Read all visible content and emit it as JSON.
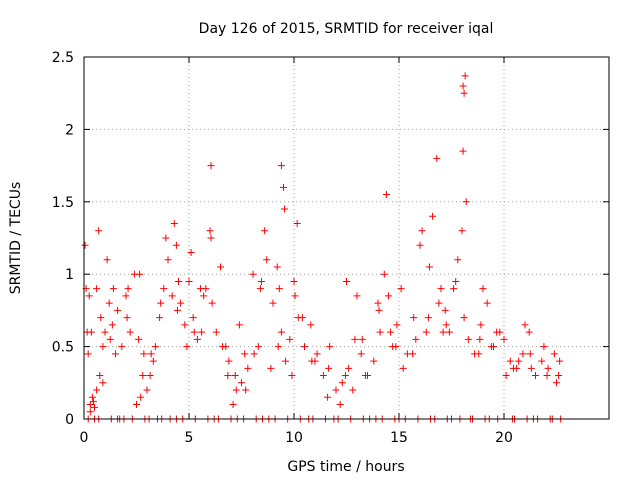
{
  "chart_data": {
    "type": "scatter",
    "title": "Day 126 of 2015, SRMTID for receiver iqal",
    "xlabel": "GPS time / hours",
    "ylabel": "SRMTID / TECUs",
    "xlim": [
      0,
      25
    ],
    "ylim": [
      0,
      2.5
    ],
    "xticks": [
      0,
      5,
      10,
      15,
      20
    ],
    "xtick_labels": [
      "0",
      "5",
      "10",
      "15",
      "20"
    ],
    "yticks": [
      0,
      0.5,
      1,
      1.5,
      2,
      2.5
    ],
    "ytick_labels": [
      "0",
      "0.5",
      "1",
      "1.5",
      "2",
      "2.5"
    ],
    "grid": true,
    "marker": "+",
    "series": [
      {
        "name": "SRMTID",
        "color": "#ff0000",
        "x": [
          0.05,
          0.1,
          0.15,
          0.2,
          0.3,
          0.4,
          0.5,
          0.6,
          0.7,
          0.8,
          0.9,
          1.0,
          1.2,
          1.4,
          1.6,
          1.8,
          2.0,
          2.2,
          2.4,
          2.6,
          2.8,
          3.0,
          3.2,
          3.4,
          3.6,
          3.8,
          4.0,
          4.2,
          4.4,
          4.6,
          4.8,
          5.0,
          5.2,
          5.4,
          5.6,
          5.8,
          6.0,
          6.1,
          6.3,
          6.6,
          6.9,
          7.2,
          7.5,
          7.8,
          8.1,
          8.4,
          8.7,
          9.0,
          9.2,
          9.4,
          9.6,
          9.8,
          10.0,
          10.2,
          10.5,
          10.8,
          11.1,
          11.4,
          11.7,
          12.0,
          12.3,
          12.6,
          12.9,
          13.2,
          13.5,
          13.8,
          14.1,
          14.3,
          14.5,
          14.7,
          14.9,
          15.1,
          15.4,
          15.7,
          16.0,
          16.3,
          16.6,
          16.9,
          17.0,
          17.2,
          17.4,
          17.6,
          17.8,
          18.0,
          18.1,
          18.3,
          18.6,
          18.9,
          19.2,
          19.5,
          19.8,
          20.0,
          20.3,
          20.6,
          20.9,
          21.2,
          21.5,
          21.8,
          22.1,
          22.4,
          22.6,
          0.3,
          0.6,
          1.1,
          1.5,
          2.1,
          2.7,
          3.3,
          4.5,
          5.7,
          6.5,
          7.1,
          7.7,
          8.3,
          8.9,
          9.3,
          9.9,
          10.4,
          11.0,
          11.6,
          12.2,
          12.8,
          13.4,
          14.0,
          14.6,
          15.2,
          15.8,
          16.4,
          17.1,
          17.7,
          18.2,
          18.8,
          19.4,
          20.1,
          20.7,
          21.3,
          21.9,
          22.5,
          4.3,
          9.4,
          9.5,
          14.4,
          16.8,
          18.05,
          18.1,
          18.15,
          6.05,
          10.15,
          3.9,
          5.1,
          8.6,
          12.5,
          13.0,
          16.1,
          19.0,
          21.0,
          0.9,
          2.5,
          4.9,
          7.4,
          0.5,
          1.3,
          1.9,
          2.3,
          2.9,
          3.5,
          4.1,
          4.7,
          5.3,
          5.9,
          6.4,
          7.0,
          7.6,
          8.2,
          8.8,
          9.7,
          10.3,
          10.9,
          11.5,
          12.1,
          12.7,
          13.3,
          13.9,
          14.2,
          14.8,
          15.3,
          15.9,
          16.5,
          17.3,
          17.9,
          18.4,
          19.1,
          19.7,
          20.4,
          21.1,
          21.6,
          22.2,
          22.7,
          1.7,
          3.1,
          4.4,
          6.2,
          7.3,
          8.5,
          9.1,
          10.7,
          11.9,
          13.6,
          15.0,
          16.7,
          17.5,
          18.5,
          19.3,
          20.5,
          21.4,
          22.3,
          0.2,
          0.7,
          1.6,
          3.7,
          0.35,
          1.25,
          2.05,
          2.85,
          3.65,
          4.45,
          5.25,
          6.05,
          6.85,
          7.65,
          8.45,
          9.25,
          10.05,
          10.85,
          11.65,
          12.45,
          13.25,
          14.05,
          14.85,
          15.65,
          16.45,
          17.25,
          18.05,
          18.85,
          19.65,
          20.45,
          21.25,
          22.05,
          22.65,
          0.25,
          0.45,
          0.75,
          1.35,
          2.65,
          3.15,
          5.55,
          6.75,
          7.25,
          8.05,
          9.55
        ],
        "y": [
          1.2,
          0.9,
          0.6,
          0.45,
          0.1,
          0.15,
          0.08,
          0.2,
          1.3,
          0.7,
          0.5,
          0.6,
          0.8,
          0.9,
          0.75,
          0.5,
          0.85,
          0.6,
          1.0,
          0.55,
          0.3,
          0.2,
          0.45,
          0.5,
          0.7,
          0.9,
          1.1,
          0.85,
          1.2,
          0.8,
          0.65,
          0.95,
          0.7,
          0.55,
          0.6,
          0.9,
          1.3,
          0.8,
          0.6,
          0.5,
          0.4,
          0.3,
          0.25,
          0.35,
          0.45,
          0.9,
          1.1,
          0.8,
          1.05,
          0.6,
          0.4,
          0.55,
          0.95,
          0.7,
          0.5,
          0.65,
          0.45,
          0.3,
          0.5,
          0.2,
          0.25,
          0.35,
          0.55,
          0.45,
          0.3,
          0.4,
          0.6,
          1.0,
          0.85,
          0.5,
          0.65,
          0.9,
          0.45,
          0.7,
          1.2,
          0.6,
          1.4,
          0.8,
          0.9,
          0.75,
          0.6,
          0.9,
          1.1,
          1.3,
          0.7,
          0.55,
          0.45,
          0.65,
          0.8,
          0.5,
          0.6,
          0.55,
          0.4,
          0.35,
          0.45,
          0.6,
          0.3,
          0.4,
          0.35,
          0.45,
          0.3,
          0.05,
          0.9,
          1.1,
          0.45,
          0.9,
          0.15,
          0.4,
          0.95,
          0.85,
          1.05,
          0.1,
          0.2,
          0.5,
          0.35,
          0.9,
          0.3,
          0.7,
          0.4,
          0.15,
          0.1,
          0.2,
          0.3,
          0.8,
          0.6,
          0.35,
          0.55,
          0.7,
          0.6,
          0.95,
          1.5,
          0.45,
          0.5,
          0.3,
          0.4,
          0.35,
          0.5,
          0.25,
          1.35,
          1.75,
          1.6,
          1.55,
          1.8,
          2.3,
          2.25,
          2.37,
          1.75,
          1.35,
          1.25,
          1.15,
          1.3,
          0.95,
          0.85,
          1.3,
          0.9,
          0.65,
          0.25,
          0.1,
          0.5,
          0.65,
          0,
          0,
          0,
          0,
          0,
          0,
          0,
          0,
          0,
          0,
          0,
          0,
          0,
          0,
          0,
          0,
          0,
          0,
          0,
          0,
          0,
          0,
          0,
          0,
          0,
          0,
          0,
          0,
          0,
          0,
          0,
          0,
          0,
          0,
          0,
          0,
          0,
          0,
          0,
          0,
          0,
          0,
          0,
          0,
          0,
          0,
          0,
          0,
          0,
          0,
          0,
          0,
          0,
          0,
          0,
          0,
          0,
          0,
          0,
          0,
          0.6,
          0.55,
          0.7,
          0.45,
          0.8,
          0.75,
          0.6,
          1.25,
          0.3,
          0.45,
          0.95,
          0.5,
          0.85,
          0.4,
          0.35,
          0.3,
          0.55,
          0.75,
          0.5,
          0.45,
          1.05,
          0.65,
          1.85,
          0.55,
          0.6,
          0.35,
          0.45,
          0.3,
          0.4,
          0.85,
          0.12,
          0.3,
          0.65,
          1.0,
          0.3,
          0.9,
          0.5,
          0.2,
          1.0,
          1.45
        ]
      }
    ]
  }
}
